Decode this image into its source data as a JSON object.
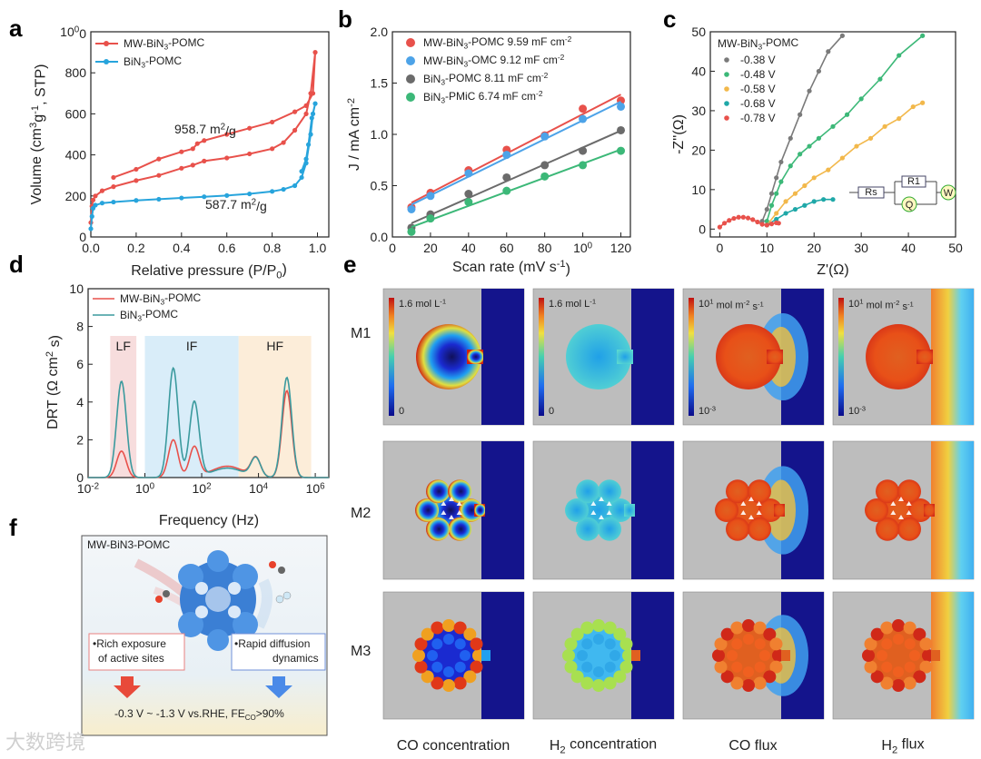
{
  "panels": {
    "a": "a",
    "b": "b",
    "c": "c",
    "d": "d",
    "e": "e",
    "f": "f"
  },
  "watermark": "大数跨境",
  "colors": {
    "red": "#e8514b",
    "blue": "#27a4dc",
    "lightblue": "#4da3e8",
    "gray": "#6b6b6b",
    "green": "#3cb878",
    "orange": "#f2b84b",
    "teal": "#1fa8a8",
    "navy": "#1a1a9c",
    "bg_gray": "#bdbdbd"
  },
  "chart_data": [
    {
      "id": "a",
      "type": "line",
      "xlabel": "Relative pressure (P/P0)",
      "ylabel": "Volume (cm3g-1, STP)",
      "xlim": [
        0,
        1.05
      ],
      "ylim": [
        0,
        1000
      ],
      "xticks": [
        "0.0",
        "0.2",
        "0.4",
        "0.6",
        "0.8",
        "1.0"
      ],
      "yticks": [
        "0",
        "200",
        "400",
        "600",
        "800",
        "1000"
      ],
      "annotations": [
        "958.7 m2/g",
        "587.7 m2/g"
      ],
      "series": [
        {
          "name": "MW-BiN3-POMC",
          "color": "#e8514b",
          "x": [
            0.0,
            0.005,
            0.01,
            0.02,
            0.05,
            0.1,
            0.2,
            0.3,
            0.4,
            0.45,
            0.5,
            0.6,
            0.7,
            0.8,
            0.85,
            0.9,
            0.95,
            0.97,
            0.99,
            0.98,
            0.95,
            0.9,
            0.8,
            0.7,
            0.6,
            0.5,
            0.47,
            0.45,
            0.4,
            0.3,
            0.2,
            0.1
          ],
          "y": [
            70,
            150,
            180,
            200,
            225,
            245,
            275,
            300,
            335,
            350,
            370,
            385,
            405,
            430,
            460,
            520,
            600,
            700,
            900,
            700,
            640,
            610,
            560,
            530,
            500,
            470,
            455,
            430,
            415,
            380,
            330,
            290
          ]
        },
        {
          "name": "BiN3-POMC",
          "color": "#27a4dc",
          "x": [
            0.0,
            0.005,
            0.01,
            0.02,
            0.05,
            0.1,
            0.2,
            0.3,
            0.4,
            0.5,
            0.6,
            0.7,
            0.8,
            0.85,
            0.9,
            0.93,
            0.95,
            0.97,
            0.98,
            0.99,
            0.975,
            0.96,
            0.95,
            0.93
          ],
          "y": [
            40,
            100,
            140,
            155,
            165,
            170,
            178,
            184,
            190,
            196,
            202,
            210,
            222,
            232,
            250,
            290,
            360,
            500,
            600,
            650,
            580,
            450,
            380,
            320
          ]
        }
      ]
    },
    {
      "id": "b",
      "type": "scatter",
      "xlabel": "Scan rate (mV s-1)",
      "ylabel": "J / mA cm-2",
      "xlim": [
        0,
        125
      ],
      "ylim": [
        0,
        2.0
      ],
      "xticks": [
        "0",
        "20",
        "40",
        "60",
        "80",
        "100",
        "120"
      ],
      "yticks": [
        "0.0",
        "0.5",
        "1.0",
        "1.5",
        "2.0"
      ],
      "x": [
        10,
        20,
        40,
        60,
        80,
        100,
        120
      ],
      "series": [
        {
          "name": "MW-BiN3-POMC 9.59 mF cm-2",
          "color": "#e8514b",
          "values": [
            0.29,
            0.43,
            0.65,
            0.85,
            0.99,
            1.25,
            1.33
          ]
        },
        {
          "name": "MW-BiN3-OMC 9.12 mF cm-2",
          "color": "#4da3e8",
          "values": [
            0.27,
            0.4,
            0.62,
            0.8,
            0.98,
            1.15,
            1.27
          ]
        },
        {
          "name": "BiN3-POMC 8.11 mF cm-2",
          "color": "#6b6b6b",
          "values": [
            0.09,
            0.22,
            0.42,
            0.58,
            0.7,
            0.84,
            1.04
          ]
        },
        {
          "name": "BiN3-PMiC 6.74 mF cm-2",
          "color": "#3cb878",
          "values": [
            0.05,
            0.18,
            0.34,
            0.45,
            0.59,
            0.7,
            0.84
          ]
        }
      ]
    },
    {
      "id": "c",
      "type": "scatter",
      "title": "MW-BiN3-POMC",
      "xlabel": "Z'(Ω)",
      "ylabel": "-Z''(Ω)",
      "xlim": [
        -2,
        50
      ],
      "ylim": [
        -2,
        50
      ],
      "xticks": [
        "0",
        "10",
        "20",
        "30",
        "40",
        "50"
      ],
      "yticks": [
        "0",
        "10",
        "20",
        "30",
        "40",
        "50"
      ],
      "circuit": [
        "Rs",
        "R1",
        "Q",
        "W"
      ],
      "series": [
        {
          "name": "-0.38 V",
          "color": "#7a7a7a",
          "x": [
            9,
            10,
            11,
            12,
            13,
            15,
            17,
            19,
            21,
            23,
            26
          ],
          "y": [
            2,
            5,
            9,
            13,
            17,
            23,
            29,
            35,
            40,
            45,
            49
          ]
        },
        {
          "name": "-0.48 V",
          "color": "#3cb878",
          "x": [
            10,
            11,
            12,
            13,
            15,
            17,
            19,
            21,
            24,
            27,
            30,
            34,
            38,
            43
          ],
          "y": [
            2,
            6,
            9,
            12,
            16,
            19,
            21,
            23,
            26,
            29,
            33,
            38,
            44,
            49
          ]
        },
        {
          "name": "-0.58 V",
          "color": "#f2b84b",
          "x": [
            10,
            12,
            14,
            16,
            18,
            20,
            23,
            26,
            29,
            32,
            35,
            38,
            41,
            43
          ],
          "y": [
            1,
            4,
            7,
            9,
            11,
            13,
            15,
            18,
            21,
            23,
            26,
            28,
            31,
            32
          ]
        },
        {
          "name": "-0.68 V",
          "color": "#1fa8a8",
          "x": [
            10,
            12,
            14,
            16,
            18,
            20,
            22,
            24
          ],
          "y": [
            1,
            2.5,
            4,
            5,
            6,
            7,
            7.5,
            7.5
          ]
        },
        {
          "name": "-0.78 V",
          "color": "#e8514b",
          "x": [
            0,
            1,
            2,
            3,
            4,
            5,
            6,
            7,
            8,
            9,
            10,
            11,
            12,
            12.5
          ],
          "y": [
            0.5,
            1.5,
            2.2,
            2.7,
            3,
            3,
            2.8,
            2.4,
            1.8,
            1.2,
            1,
            1.3,
            1.6,
            1.5
          ]
        }
      ]
    },
    {
      "id": "d",
      "type": "line",
      "xlabel": "Frequency (Hz)",
      "ylabel": "DRT (Ω cm2 s)",
      "xscale": "log",
      "xlim": [
        0.01,
        3000000
      ],
      "ylim": [
        0,
        10
      ],
      "xticks": [
        "10-2",
        "100",
        "102",
        "104",
        "106"
      ],
      "yticks": [
        "0",
        "2",
        "4",
        "6",
        "8",
        "10"
      ],
      "regions": [
        "LF",
        "IF",
        "HF"
      ],
      "series": [
        {
          "name": "MW-BiN3-POMC",
          "color": "#e8514b",
          "peaks": [
            [
              0.15,
              1.4
            ],
            [
              10,
              2.0
            ],
            [
              55,
              1.6
            ],
            [
              800,
              0.6
            ],
            [
              8000,
              1.0
            ],
            [
              100000,
              4.6
            ]
          ]
        },
        {
          "name": "BiN3-POMC",
          "color": "#3b9a9e",
          "peaks": [
            [
              0.15,
              5.1
            ],
            [
              10,
              5.8
            ],
            [
              55,
              4.0
            ],
            [
              800,
              0.5
            ],
            [
              8000,
              1.0
            ],
            [
              100000,
              5.3
            ]
          ]
        }
      ]
    }
  ],
  "panel_e": {
    "rows": [
      "M1",
      "M2",
      "M3"
    ],
    "columns": [
      "CO concentration",
      "H2 concentration",
      "CO flux",
      "H2 flux"
    ],
    "colorbar_top": [
      "1.6 mol L-1",
      "1.6 mol L-1",
      "101 mol m-2 s-1",
      "101 mol m-2 s-1"
    ],
    "colorbar_bottom": [
      "0",
      "0",
      "10-3",
      "10-3"
    ]
  },
  "panel_f": {
    "title": "MW-BiN3-POMC",
    "left_box": "•Rich exposure of active sites",
    "right_box": "•Rapid diffusion dynamics",
    "bottom": "-0.3 V ~ -1.3 V vs.RHE, FECO>90%"
  }
}
